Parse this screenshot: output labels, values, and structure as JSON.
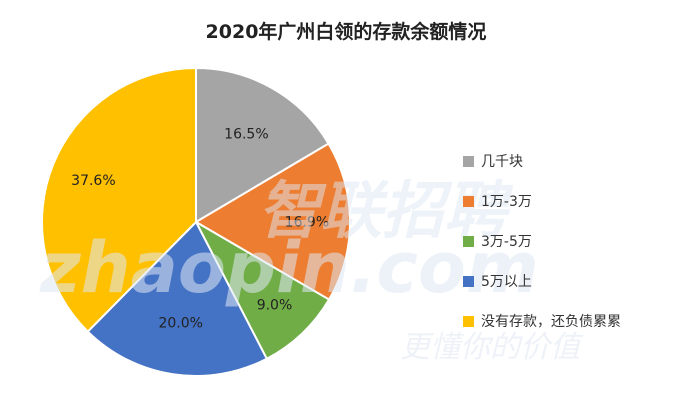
{
  "chart_data": {
    "type": "pie",
    "title": "2020年广州白领的存款余额情况",
    "categories": [
      "几千块",
      "1万-3万",
      "3万-5万",
      "5万以上",
      "没有存款，还负债累累"
    ],
    "values": [
      16.5,
      16.9,
      9.0,
      20.0,
      37.6
    ],
    "value_labels": [
      "16.5%",
      "16.9%",
      "9.0%",
      "20.0%",
      "37.6%"
    ],
    "colors": [
      "#a5a5a5",
      "#ed7d31",
      "#70ad47",
      "#4472c4",
      "#ffc000"
    ],
    "legend_position": "right"
  },
  "watermark": {
    "cn": "智联招聘",
    "en": "zhaopin.com",
    "slogan": "更懂你的价值"
  }
}
